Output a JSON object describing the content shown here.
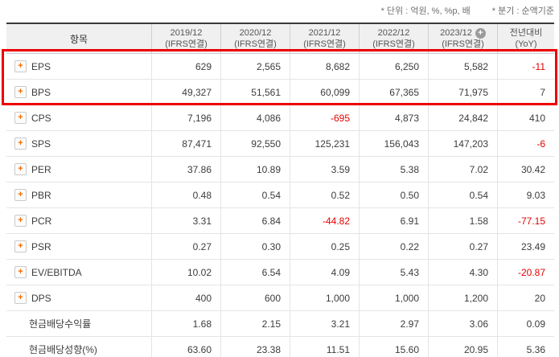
{
  "notes": {
    "unit": "* 단위 : 억원, %, %p, 배",
    "basis": "* 분기 : 순액기준"
  },
  "colors": {
    "negative_value": "#e60000",
    "highlight_border": "#ee0000",
    "expand_icon_orange": "#f06c00",
    "header_background": "#f0f0f0"
  },
  "table": {
    "item_header": "항목",
    "columns": [
      {
        "line1": "2019/12",
        "line2": "(IFRS연결)",
        "add_icon": false
      },
      {
        "line1": "2020/12",
        "line2": "(IFRS연결)",
        "add_icon": false
      },
      {
        "line1": "2021/12",
        "line2": "(IFRS연결)",
        "add_icon": false
      },
      {
        "line1": "2022/12",
        "line2": "(IFRS연결)",
        "add_icon": false
      },
      {
        "line1": "2023/12",
        "line2": "(IFRS연결)",
        "add_icon": true
      },
      {
        "line1": "전년대비",
        "line2": "(YoY)",
        "add_icon": false
      }
    ],
    "rows": [
      {
        "label": "EPS",
        "expandable": true,
        "highlighted": true,
        "values": [
          "629",
          "2,565",
          "8,682",
          "6,250",
          "5,582",
          "-11"
        ]
      },
      {
        "label": "BPS",
        "expandable": true,
        "highlighted": true,
        "values": [
          "49,327",
          "51,561",
          "60,099",
          "67,365",
          "71,975",
          "7"
        ]
      },
      {
        "label": "CPS",
        "expandable": true,
        "highlighted": false,
        "values": [
          "7,196",
          "4,086",
          "-695",
          "4,873",
          "24,842",
          "410"
        ]
      },
      {
        "label": "SPS",
        "expandable": true,
        "highlighted": false,
        "values": [
          "87,471",
          "92,550",
          "125,231",
          "156,043",
          "147,203",
          "-6"
        ]
      },
      {
        "label": "PER",
        "expandable": true,
        "highlighted": false,
        "values": [
          "37.86",
          "10.89",
          "3.59",
          "5.38",
          "7.02",
          "30.42"
        ]
      },
      {
        "label": "PBR",
        "expandable": true,
        "highlighted": false,
        "values": [
          "0.48",
          "0.54",
          "0.52",
          "0.50",
          "0.54",
          "9.03"
        ]
      },
      {
        "label": "PCR",
        "expandable": true,
        "highlighted": false,
        "values": [
          "3.31",
          "6.84",
          "-44.82",
          "6.91",
          "1.58",
          "-77.15"
        ]
      },
      {
        "label": "PSR",
        "expandable": true,
        "highlighted": false,
        "values": [
          "0.27",
          "0.30",
          "0.25",
          "0.22",
          "0.27",
          "23.49"
        ]
      },
      {
        "label": "EV/EBITDA",
        "expandable": true,
        "highlighted": false,
        "values": [
          "10.02",
          "6.54",
          "4.09",
          "5.43",
          "4.30",
          "-20.87"
        ]
      },
      {
        "label": "DPS",
        "expandable": true,
        "highlighted": false,
        "values": [
          "400",
          "600",
          "1,000",
          "1,000",
          "1,200",
          "20"
        ]
      },
      {
        "label": "현금배당수익률",
        "expandable": false,
        "highlighted": false,
        "values": [
          "1.68",
          "2.15",
          "3.21",
          "2.97",
          "3.06",
          "0.09"
        ]
      },
      {
        "label": "현금배당성향(%)",
        "expandable": false,
        "highlighted": false,
        "values": [
          "63.60",
          "23.38",
          "11.51",
          "15.60",
          "20.95",
          "5.36"
        ]
      }
    ]
  }
}
